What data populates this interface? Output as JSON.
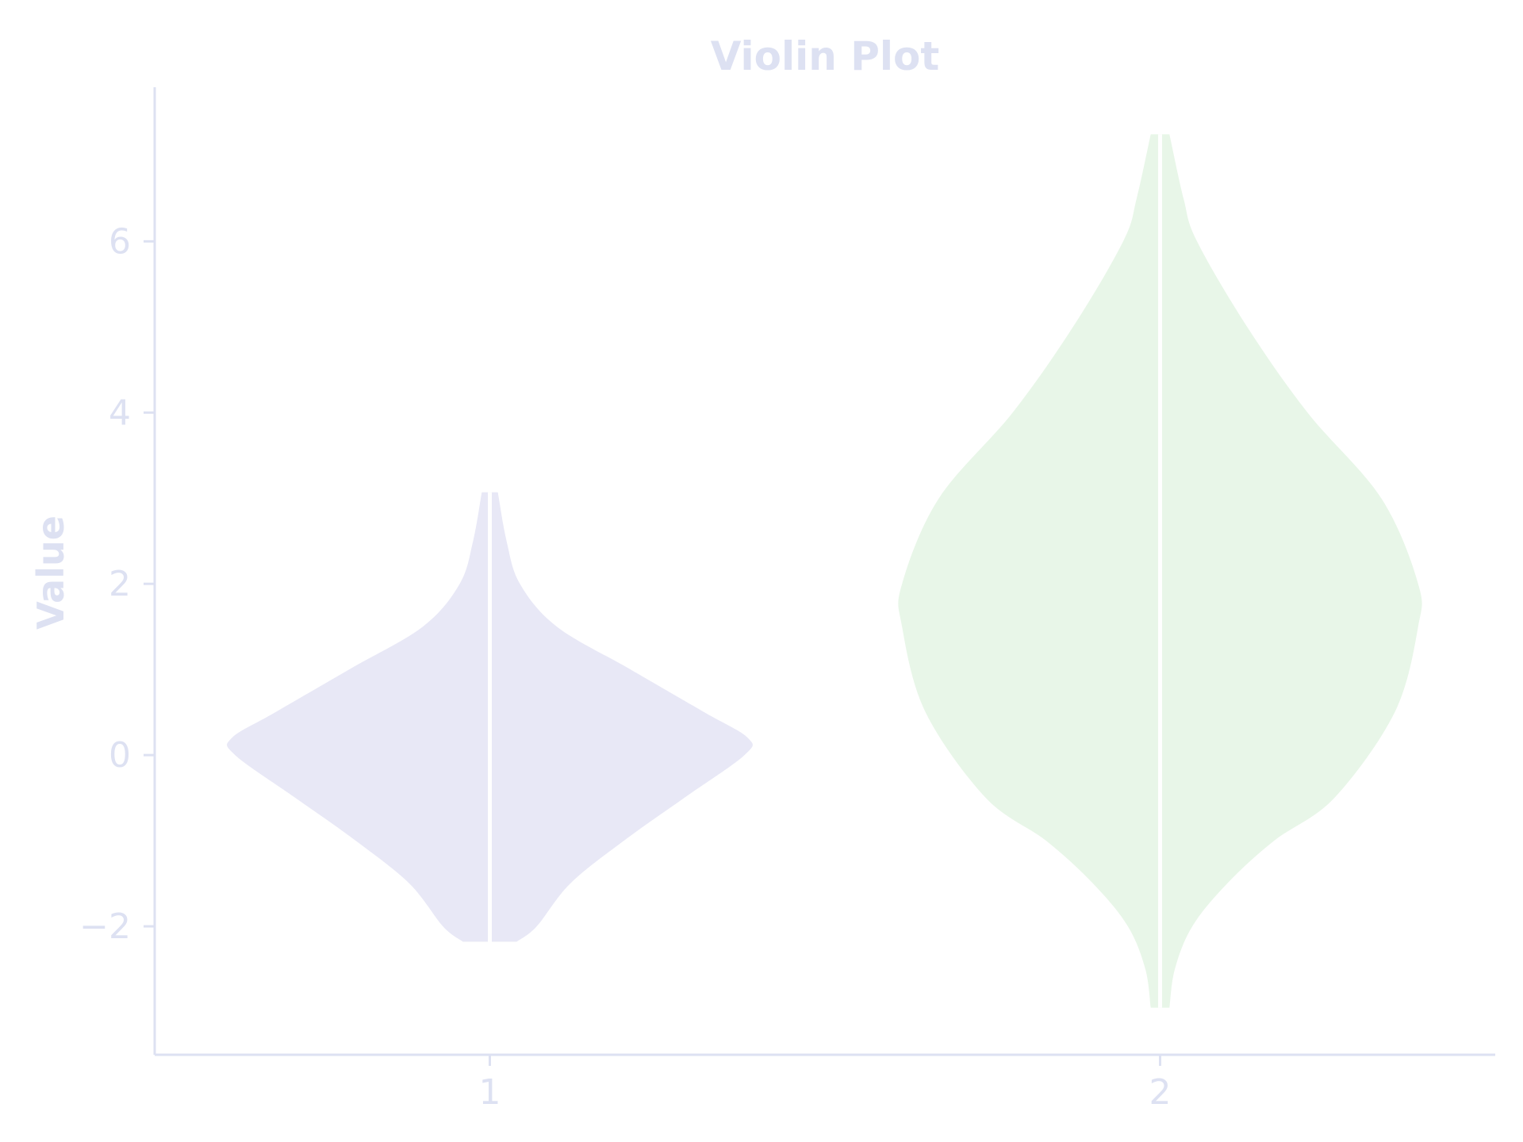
{
  "colors": {
    "axis": "#dde1f2",
    "text": "#dde1f2",
    "background": "#ffffff",
    "median_line": "#ffffff"
  },
  "chart_data": {
    "type": "violin",
    "title": "Violin Plot",
    "xlabel": "",
    "ylabel": "Value",
    "categories": [
      "1",
      "2"
    ],
    "xlim": [
      0.5,
      2.5
    ],
    "ylim": [
      -3.5,
      7.8
    ],
    "yticks": [
      -2,
      0,
      2,
      4,
      6
    ],
    "ytick_labels": [
      "−2",
      "0",
      "2",
      "4",
      "6"
    ],
    "xtick_labels": [
      "1",
      "2"
    ],
    "grid": false,
    "legend": "none",
    "series": [
      {
        "position": 1,
        "color": "#e8e8f6",
        "min": -2.18,
        "max": 3.07,
        "median": 0.0,
        "profile": [
          [
            -2.18,
            0.04
          ],
          [
            -2.0,
            0.07
          ],
          [
            -1.5,
            0.12
          ],
          [
            -1.0,
            0.2
          ],
          [
            -0.5,
            0.29
          ],
          [
            0.0,
            0.38
          ],
          [
            0.2,
            0.385
          ],
          [
            0.5,
            0.32
          ],
          [
            1.0,
            0.21
          ],
          [
            1.5,
            0.1
          ],
          [
            2.0,
            0.045
          ],
          [
            2.5,
            0.025
          ],
          [
            3.07,
            0.012
          ]
        ]
      },
      {
        "position": 2,
        "color": "#e8f6e8",
        "min": -2.95,
        "max": 7.25,
        "median": 2.0,
        "profile": [
          [
            -2.95,
            0.014
          ],
          [
            -2.5,
            0.022
          ],
          [
            -2.0,
            0.048
          ],
          [
            -1.5,
            0.1
          ],
          [
            -1.0,
            0.17
          ],
          [
            -0.5,
            0.26
          ],
          [
            0.5,
            0.35
          ],
          [
            1.5,
            0.385
          ],
          [
            2.0,
            0.385
          ],
          [
            3.0,
            0.33
          ],
          [
            4.0,
            0.22
          ],
          [
            5.0,
            0.13
          ],
          [
            6.0,
            0.055
          ],
          [
            6.5,
            0.035
          ],
          [
            7.25,
            0.014
          ]
        ]
      }
    ]
  }
}
